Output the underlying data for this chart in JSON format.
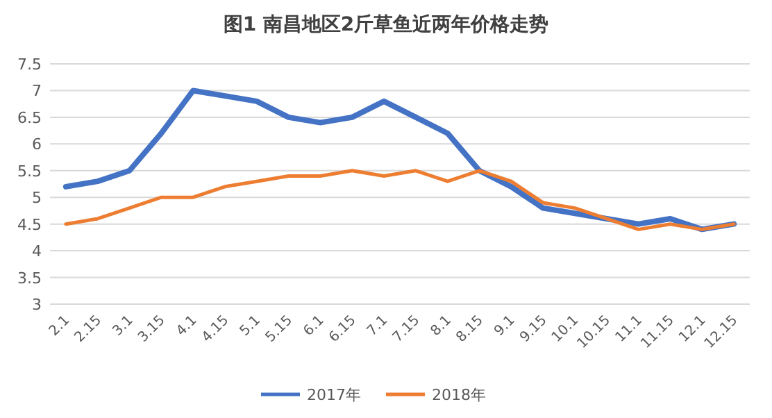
{
  "chart_data": {
    "type": "line",
    "title": "图1 南昌地区2斤草鱼近两年价格走势",
    "categories": [
      "2.1",
      "2.15",
      "3.1",
      "3.15",
      "4.1",
      "4.15",
      "5.1",
      "5.15",
      "6.1",
      "6.15",
      "7.1",
      "7.15",
      "8.1",
      "8.15",
      "9.1",
      "9.15",
      "10.1",
      "10.15",
      "11.1",
      "11.15",
      "12.1",
      "12.15"
    ],
    "series": [
      {
        "name": "2017年",
        "color": "#4472c4",
        "values": [
          5.2,
          5.3,
          5.5,
          6.2,
          7.0,
          6.9,
          6.8,
          6.5,
          6.4,
          6.5,
          6.8,
          6.5,
          6.2,
          5.5,
          5.2,
          4.8,
          4.7,
          4.6,
          4.5,
          4.6,
          4.4,
          4.5
        ]
      },
      {
        "name": "2018年",
        "color": "#ed7d31",
        "values": [
          4.5,
          4.6,
          4.8,
          5.0,
          5.0,
          5.2,
          5.3,
          5.4,
          5.4,
          5.5,
          5.4,
          5.5,
          5.3,
          5.5,
          5.3,
          4.9,
          4.8,
          4.6,
          4.4,
          4.5,
          4.4,
          4.5
        ]
      }
    ],
    "ylim": [
      3,
      7.5
    ],
    "yticks": [
      3,
      3.5,
      4,
      4.5,
      5,
      5.5,
      6,
      6.5,
      7,
      7.5
    ],
    "grid": "y",
    "legend": "bottom",
    "marker": "none",
    "line_style": "solid"
  }
}
